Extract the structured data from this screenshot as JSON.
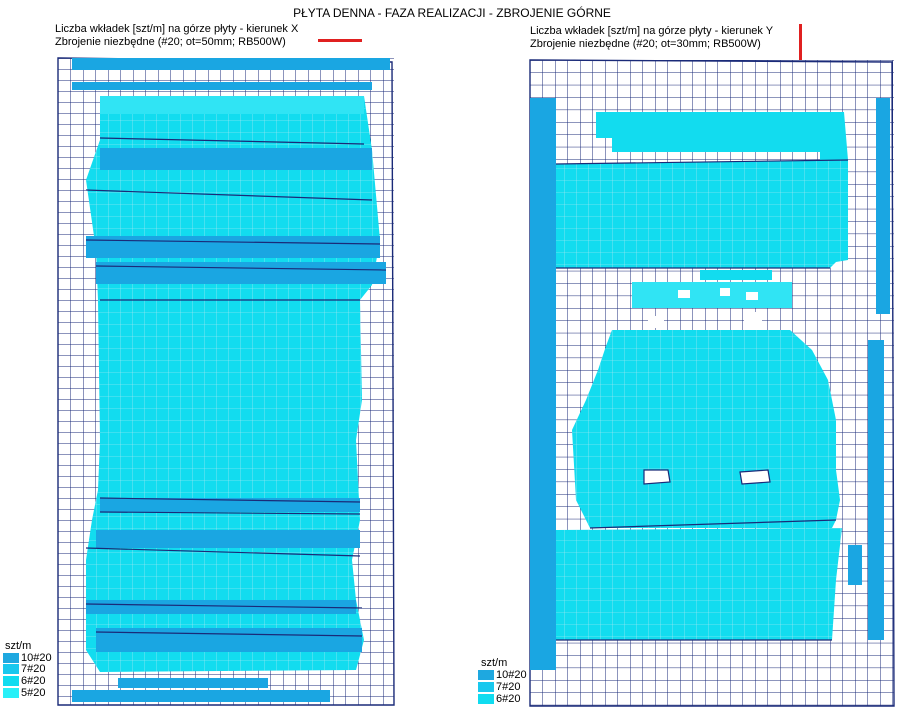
{
  "title": "PŁYTA DENNA - FAZA REALIZACJI - ZBROJENIE GÓRNE",
  "panel_x": {
    "line1": "Liczba wkładek [szt/m] na górze płyty - kierunek X",
    "line2": "Zbrojenie niezbędne (#20; ot=50mm; RB500W)"
  },
  "panel_y": {
    "line1": "Liczba wkładek [szt/m] na górze płyty - kierunek Y",
    "line2": "Zbrojenie niezbędne (#20; ot=30mm; RB500W)"
  },
  "legend_x": {
    "unit": "szt/m",
    "items": [
      {
        "label": "10#20",
        "color": "#1ea8e0"
      },
      {
        "label": "7#20",
        "color": "#18c8ee"
      },
      {
        "label": "6#20",
        "color": "#10dcf0"
      },
      {
        "label": "5#20",
        "color": "#28f0f8"
      }
    ]
  },
  "legend_y": {
    "unit": "szt/m",
    "items": [
      {
        "label": "10#20",
        "color": "#1ea8e0"
      },
      {
        "label": "7#20",
        "color": "#18c8ee"
      },
      {
        "label": "6#20",
        "color": "#10dcf0"
      }
    ]
  },
  "colors": {
    "mesh": "#1a2a78",
    "zone_main": "#12dcef",
    "zone_dark": "#1aa6e2",
    "zone_light": "#30e4f4",
    "direction_marker": "#e02020"
  }
}
